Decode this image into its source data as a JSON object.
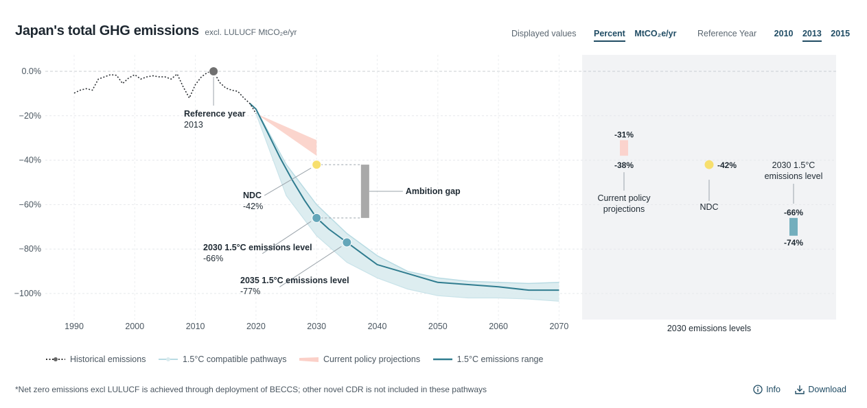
{
  "header": {
    "title": "Japan's total GHG emissions",
    "subtitle": "excl. LULUCF MtCO₂e/yr"
  },
  "controls": {
    "displayed_values_label": "Displayed values",
    "display_options": [
      "Percent",
      "MtCO₂e/yr"
    ],
    "display_selected": "Percent",
    "reference_year_label": "Reference Year",
    "year_options": [
      "2010",
      "2013",
      "2015"
    ],
    "year_selected": "2013"
  },
  "chart_data": [
    {
      "type": "line",
      "xlim": [
        1987,
        2070
      ],
      "ylim": [
        -112,
        7
      ],
      "x_ticks": [
        "1990",
        "2000",
        "2010",
        "2020",
        "2030",
        "2040",
        "2050",
        "2060",
        "2070"
      ],
      "y_ticks": [
        "0.0%",
        "−20%",
        "−40%",
        "−60%",
        "−80%",
        "−100%"
      ],
      "y_tick_values": [
        0,
        -20,
        -40,
        -60,
        -80,
        -100
      ],
      "grid": true,
      "series": [
        {
          "name": "Historical emissions",
          "style": "dotted",
          "x": [
            1990,
            1991,
            1992,
            1993,
            1994,
            1995,
            1996,
            1997,
            1998,
            1999,
            2000,
            2001,
            2002,
            2003,
            2004,
            2005,
            2006,
            2007,
            2008,
            2009,
            2010,
            2011,
            2012,
            2013,
            2014,
            2015,
            2016,
            2017,
            2018,
            2019,
            2020
          ],
          "values": [
            -9.8,
            -8.5,
            -7.8,
            -8.5,
            -3.5,
            -2.5,
            -1.5,
            -1.8,
            -5.5,
            -3.0,
            -1.5,
            -3.5,
            -2.5,
            -2.0,
            -2.5,
            -2.5,
            -3.5,
            -1.2,
            -7.0,
            -12.0,
            -6.0,
            -2.5,
            -0.5,
            0,
            -5.0,
            -7.5,
            -8.5,
            -9.0,
            -12.0,
            -14.5,
            -19.0
          ]
        },
        {
          "name": "1.5°C emissions range",
          "style": "line",
          "x": [
            2019,
            2020,
            2022,
            2024,
            2026,
            2028,
            2030,
            2032,
            2035,
            2038,
            2040,
            2045,
            2050,
            2055,
            2060,
            2065,
            2070
          ],
          "values": [
            -14.5,
            -17,
            -28,
            -39,
            -49,
            -58,
            -66,
            -71,
            -77,
            -83,
            -87,
            -91,
            -95,
            -96,
            -97,
            -98.5,
            -98.5
          ]
        },
        {
          "name": "1.5°C compatible pathways",
          "style": "band",
          "x": [
            2020,
            2025,
            2030,
            2035,
            2040,
            2045,
            2050,
            2055,
            2060,
            2065,
            2070
          ],
          "upper": [
            -17,
            -42,
            -60,
            -73,
            -83,
            -90,
            -93,
            -94.5,
            -95,
            -95.5,
            -95
          ],
          "lower": [
            -19,
            -56,
            -74,
            -86,
            -93,
            -98,
            -101,
            -102,
            -102,
            -102.5,
            -103.5
          ]
        },
        {
          "name": "Current policy projections",
          "style": "area",
          "x": [
            2020,
            2030
          ],
          "upper": [
            -19,
            -31
          ],
          "lower": [
            -19,
            -38
          ]
        }
      ],
      "markers": [
        {
          "name": "Reference year",
          "x": 2013,
          "y": 0,
          "label": "Reference year",
          "value_label": "2013",
          "color": "#707070"
        },
        {
          "name": "NDC",
          "x": 2030,
          "y": -42,
          "label": "NDC",
          "value_label": "-42%",
          "color": "#f7df6e"
        },
        {
          "name": "2030 1.5°C emissions level",
          "x": 2030,
          "y": -66,
          "label": "2030 1.5°C emissions level",
          "value_label": "-66%",
          "color": "#64a6b9"
        },
        {
          "name": "2035 1.5°C emissions level",
          "x": 2035,
          "y": -77,
          "label": "2035 1.5°C emissions level",
          "value_label": "-77%",
          "color": "#64a6b9"
        }
      ],
      "ambition_gap": {
        "label": "Ambition gap",
        "x_year": 2038,
        "from": -42,
        "to": -66
      },
      "legend": [
        "Historical emissions",
        "1.5°C compatible pathways",
        "Current policy projections",
        "1.5°C emissions range"
      ],
      "legend_position": "bottom"
    },
    {
      "type": "bar",
      "xlabel": "2030 emissions levels",
      "ylim": [
        -112,
        7
      ],
      "categories": [
        "Current policy projections",
        "NDC",
        "2030 1.5°C emissions level"
      ],
      "items": [
        {
          "category": "Current policy projections",
          "label": "Current policy projections",
          "high": -31,
          "low": -38,
          "high_label": "-31%",
          "low_label": "-38%",
          "color": "#fbd3cd"
        },
        {
          "category": "NDC",
          "label": "NDC",
          "value": -42,
          "value_label": "-42%",
          "color": "#f7df6e"
        },
        {
          "category": "2030 1.5°C emissions level",
          "label": "2030 1.5°C emissions level",
          "high": -66,
          "low": -74,
          "high_label": "-66%",
          "low_label": "-74%",
          "color": "#73aebd"
        }
      ]
    }
  ],
  "footer": {
    "footnote": "*Net zero emissions excl LULUCF is achieved through deployment of BECCS; other novel CDR is not included in these pathways",
    "info_label": "Info",
    "download_label": "Download"
  },
  "colors": {
    "accent": "#1f4b63",
    "pathway_line": "#2f7c8f",
    "pathway_band": "#d9ebee",
    "policy": "#fbd0c8",
    "ndc": "#f7df6e",
    "panel_bg": "#f2f3f5"
  }
}
